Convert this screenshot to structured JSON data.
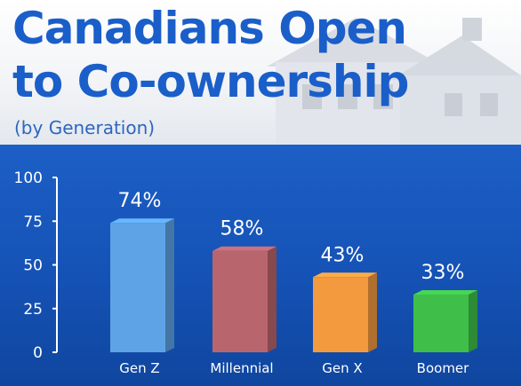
{
  "title_line1": "Canadians Open",
  "title_line2": "to Co-ownership",
  "subtitle": "(by Generation)",
  "colors": {
    "title": "#1a5ec9",
    "panel": "#1552b5"
  },
  "chart_data": {
    "type": "bar",
    "title": "Canadians Open to Co-ownership",
    "subtitle": "(by Generation)",
    "xlabel": "",
    "ylabel": "",
    "ylim": [
      0,
      100
    ],
    "yticks": [
      0,
      25,
      50,
      75,
      100
    ],
    "grid": false,
    "categories": [
      "Gen Z",
      "Millennial",
      "Gen X",
      "Boomer"
    ],
    "values": [
      74,
      58,
      43,
      33
    ],
    "data_labels": [
      "74%",
      "58%",
      "43%",
      "33%"
    ],
    "colors": [
      "#5da3e6",
      "#b9656d",
      "#f49a3e",
      "#3fbf4a"
    ]
  }
}
